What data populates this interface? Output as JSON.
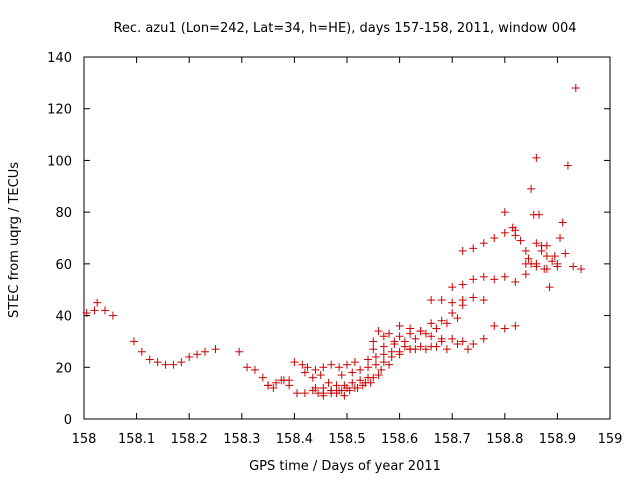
{
  "chart_data": {
    "type": "scatter",
    "title": "Rec. azu1 (Lon=242, Lat=34, h=HE), days 157-158, 2011, window 004",
    "xlabel": "GPS time / Days of year 2011",
    "ylabel": "STEC from uqrg / TECUs",
    "xlim": [
      158,
      159
    ],
    "ylim": [
      0,
      140
    ],
    "xticks": [
      "158",
      "158.1",
      "158.2",
      "158.3",
      "158.4",
      "158.5",
      "158.6",
      "158.7",
      "158.8",
      "158.9",
      "159"
    ],
    "yticks": [
      "0",
      "20",
      "40",
      "60",
      "80",
      "100",
      "120",
      "140"
    ],
    "marker": "+",
    "grid": false,
    "legend": "none",
    "color": "#cc0000",
    "series": [
      {
        "x": [
          158.005,
          158.02,
          158.025,
          158.04,
          158.055,
          158.095,
          158.11,
          158.125,
          158.14,
          158.155,
          158.17,
          158.185,
          158.2,
          158.215,
          158.23,
          158.25,
          158.295,
          158.31,
          158.325,
          158.34,
          158.35,
          158.36,
          158.375,
          158.39,
          158.35,
          158.365,
          158.38,
          158.39,
          158.405,
          158.42,
          158.435,
          158.445,
          158.455,
          158.47,
          158.48,
          158.495,
          158.4,
          158.415,
          158.425,
          158.44,
          158.455,
          158.47,
          158.485,
          158.5,
          158.515,
          158.42,
          158.435,
          158.45,
          158.465,
          158.48,
          158.495,
          158.51,
          158.525,
          158.54,
          158.44,
          158.455,
          158.47,
          158.485,
          158.5,
          158.515,
          158.53,
          158.545,
          158.56,
          158.455,
          158.47,
          158.49,
          158.505,
          158.52,
          158.535,
          158.55,
          158.565,
          158.58,
          158.49,
          158.51,
          158.525,
          158.54,
          158.555,
          158.57,
          158.585,
          158.6,
          158.62,
          158.54,
          158.555,
          158.57,
          158.585,
          158.6,
          158.62,
          158.64,
          158.66,
          158.68,
          158.55,
          158.57,
          158.59,
          158.61,
          158.63,
          158.65,
          158.67,
          158.69,
          158.71,
          158.56,
          158.58,
          158.6,
          158.62,
          158.64,
          158.66,
          158.68,
          158.7,
          158.72,
          158.55,
          158.57,
          158.59,
          158.61,
          158.63,
          158.65,
          158.67,
          158.69,
          158.71,
          158.73,
          158.6,
          158.62,
          158.64,
          158.66,
          158.68,
          158.7,
          158.72,
          158.74,
          158.76,
          158.66,
          158.68,
          158.7,
          158.72,
          158.74,
          158.76,
          158.78,
          158.8,
          158.82,
          158.7,
          158.72,
          158.74,
          158.76,
          158.78,
          158.8,
          158.82,
          158.84,
          158.86,
          158.72,
          158.74,
          158.76,
          158.78,
          158.8,
          158.82,
          158.84,
          158.86,
          158.88,
          158.8,
          158.815,
          158.82,
          158.83,
          158.84,
          158.845,
          158.85,
          158.855,
          158.86,
          158.865,
          158.87,
          158.875,
          158.88,
          158.885,
          158.895,
          158.9,
          158.91,
          158.915,
          158.92,
          158.93,
          158.935,
          158.945,
          158.85,
          158.86,
          158.87,
          158.88,
          158.89,
          158.9,
          158.905
        ],
        "y": [
          41,
          42,
          45,
          42,
          40,
          30,
          26,
          23,
          22,
          21,
          21,
          22,
          24,
          25,
          26,
          27,
          26,
          20,
          19,
          16,
          13,
          12,
          15,
          15,
          13,
          14,
          15,
          13,
          10,
          10,
          11,
          10,
          9,
          10,
          10,
          9,
          22,
          21,
          20,
          19,
          20,
          21,
          20,
          21,
          22,
          18,
          16,
          17,
          14,
          13,
          13,
          14,
          15,
          16,
          12,
          12,
          11,
          11,
          12,
          12,
          13,
          14,
          17,
          10,
          11,
          11,
          11,
          12,
          14,
          16,
          19,
          21,
          17,
          18,
          19,
          20,
          21,
          22,
          24,
          25,
          27,
          23,
          24,
          25,
          26,
          26,
          27,
          28,
          28,
          30,
          27,
          28,
          29,
          30,
          31,
          33,
          35,
          37,
          39,
          34,
          33,
          32,
          33,
          34,
          37,
          38,
          41,
          44,
          30,
          32,
          30,
          28,
          27,
          27,
          28,
          27,
          29,
          27,
          36,
          35,
          34,
          32,
          31,
          31,
          30,
          29,
          31,
          46,
          46,
          45,
          46,
          47,
          46,
          36,
          35,
          36,
          51,
          52,
          54,
          55,
          54,
          55,
          53,
          56,
          60,
          65,
          66,
          68,
          70,
          72,
          73,
          60,
          59,
          58,
          80,
          74,
          71,
          69,
          65,
          62,
          89,
          79,
          101,
          79,
          67,
          58,
          67,
          51,
          63,
          60,
          76,
          64,
          98,
          59,
          128,
          58,
          60,
          68,
          65,
          63,
          61,
          59,
          70
        ]
      }
    ]
  }
}
